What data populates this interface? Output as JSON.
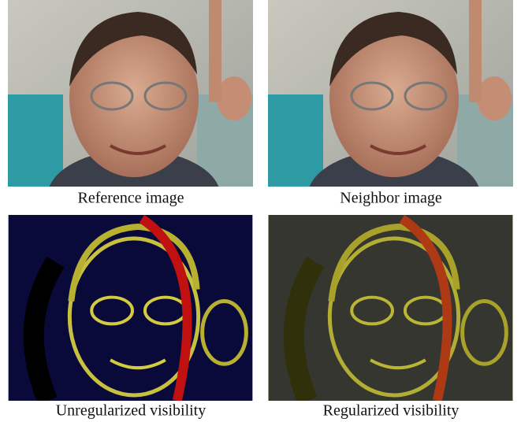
{
  "panels": [
    {
      "caption": "Reference image"
    },
    {
      "caption": "Neighbor image"
    },
    {
      "caption": "Unregularized visibility"
    },
    {
      "caption": "Regularized visibility"
    }
  ]
}
